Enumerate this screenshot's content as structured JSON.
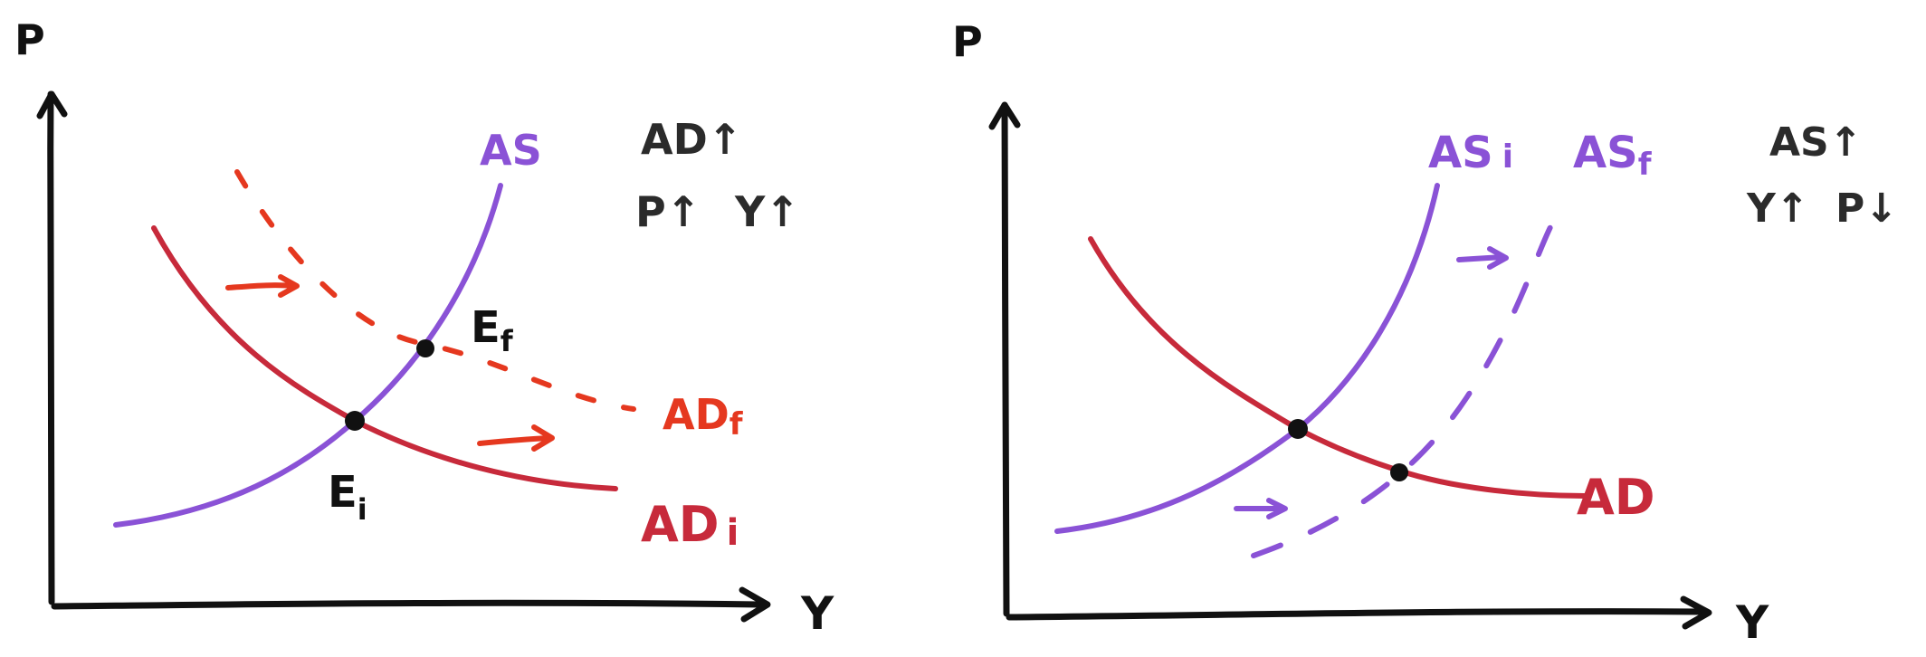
{
  "left_panel": {
    "y_axis_label": "P",
    "x_axis_label": "Y",
    "curve_labels": {
      "as": "AS",
      "ad_initial": "AD",
      "ad_initial_subscript": "i",
      "ad_final": "AD",
      "ad_final_subscript": "f"
    },
    "points": {
      "initial": "E",
      "initial_subscript": "i",
      "final": "E",
      "final_subscript": "f"
    },
    "summary": {
      "line1": "AD↑",
      "line2_p": "P↑",
      "line2_y": "Y↑"
    }
  },
  "right_panel": {
    "y_axis_label": "P",
    "x_axis_label": "Y",
    "curve_labels": {
      "as_initial": "AS",
      "as_initial_subscript": "i",
      "as_final": "AS",
      "as_final_subscript": "f",
      "ad": "AD"
    },
    "summary": {
      "line1": "AS↑",
      "line2_y": "Y↑",
      "line2_p": "P↓"
    }
  },
  "colors": {
    "ink": "#111111",
    "as_curve": "#8a52d6",
    "ad_curve": "#c72a3b",
    "ad_shift": "#e5381f",
    "summary_text": "#2b2b2b"
  }
}
